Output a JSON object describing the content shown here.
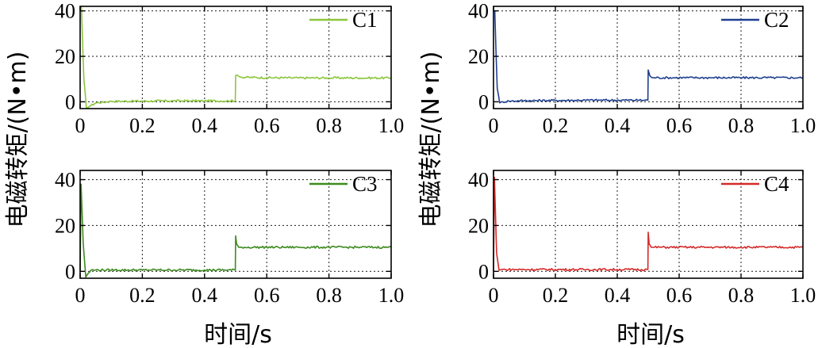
{
  "figure": {
    "ylabel": "电磁转矩/(N•m)",
    "xlabel": "时间/s"
  },
  "chart_data": [
    {
      "type": "line",
      "series": [
        {
          "name": "C1",
          "color": "#8cc63e",
          "x": [
            0,
            0.004,
            0.012,
            0.02,
            0.03,
            0.05,
            0.1,
            0.2,
            0.3,
            0.4,
            0.499,
            0.5,
            0.505,
            0.51,
            0.52,
            0.6,
            0.7,
            0.8,
            0.9,
            1.0
          ],
          "y": [
            40,
            42,
            10,
            -2.5,
            -2,
            -0.5,
            0.2,
            0.3,
            0.4,
            0.4,
            0.4,
            11.5,
            11.8,
            11.2,
            10.8,
            10.6,
            10.5,
            10.5,
            10.5,
            10.5
          ]
        }
      ],
      "xlim": [
        0,
        1.0
      ],
      "ylim": [
        -3,
        42
      ],
      "xticks": [
        "0",
        "0.2",
        "0.4",
        "0.6",
        "0.8",
        "1.0"
      ],
      "yticks": [
        "0",
        "20",
        "40"
      ],
      "grid": true,
      "legend": "top-right"
    },
    {
      "type": "line",
      "series": [
        {
          "name": "C2",
          "color": "#1f3f8f",
          "x": [
            0,
            0.004,
            0.012,
            0.02,
            0.03,
            0.05,
            0.1,
            0.2,
            0.3,
            0.4,
            0.499,
            0.5,
            0.505,
            0.51,
            0.52,
            0.6,
            0.7,
            0.8,
            0.9,
            1.0
          ],
          "y": [
            40,
            40,
            6,
            -0.5,
            0,
            0.3,
            0.5,
            0.6,
            0.7,
            0.7,
            0.7,
            14,
            11.5,
            10.8,
            10.6,
            10.6,
            10.6,
            10.6,
            10.6,
            10.6
          ]
        }
      ],
      "xlim": [
        0,
        1.0
      ],
      "ylim": [
        -3,
        42
      ],
      "xticks": [
        "0",
        "0.2",
        "0.4",
        "0.6",
        "0.8",
        "1.0"
      ],
      "yticks": [
        "0",
        "20",
        "40"
      ],
      "grid": true,
      "legend": "top-right"
    },
    {
      "type": "line",
      "series": [
        {
          "name": "C3",
          "color": "#3d8b1f",
          "x": [
            0,
            0.003,
            0.01,
            0.018,
            0.025,
            0.035,
            0.05,
            0.1,
            0.2,
            0.3,
            0.4,
            0.499,
            0.5,
            0.503,
            0.51,
            0.52,
            0.6,
            0.7,
            0.8,
            0.9,
            1.0
          ],
          "y": [
            0,
            38,
            12,
            -2.5,
            -1,
            0.5,
            0.6,
            0.6,
            0.6,
            0.6,
            0.6,
            0.6,
            15.5,
            12,
            10.5,
            10.5,
            10.5,
            10.5,
            10.5,
            10.5,
            10.5
          ]
        }
      ],
      "xlim": [
        0,
        1.0
      ],
      "ylim": [
        -3,
        44
      ],
      "xticks": [
        "0",
        "0.2",
        "0.4",
        "0.6",
        "0.8",
        "1.0"
      ],
      "yticks": [
        "0",
        "20",
        "40"
      ],
      "grid": true,
      "legend": "top-right"
    },
    {
      "type": "line",
      "series": [
        {
          "name": "C4",
          "color": "#d42a2a",
          "x": [
            0,
            0.003,
            0.01,
            0.018,
            0.025,
            0.04,
            0.1,
            0.2,
            0.3,
            0.4,
            0.499,
            0.5,
            0.503,
            0.51,
            0.52,
            0.6,
            0.7,
            0.8,
            0.9,
            1.0
          ],
          "y": [
            0,
            41,
            8,
            0.5,
            0.8,
            0.8,
            0.8,
            0.8,
            0.8,
            0.8,
            0.8,
            17,
            12,
            10.5,
            10.5,
            10.5,
            10.5,
            10.5,
            10.5,
            10.5
          ]
        }
      ],
      "xlim": [
        0,
        1.0
      ],
      "ylim": [
        -3,
        44
      ],
      "xticks": [
        "0",
        "0.2",
        "0.4",
        "0.6",
        "0.8",
        "1.0"
      ],
      "yticks": [
        "0",
        "20",
        "40"
      ],
      "grid": true,
      "legend": "top-right"
    }
  ]
}
